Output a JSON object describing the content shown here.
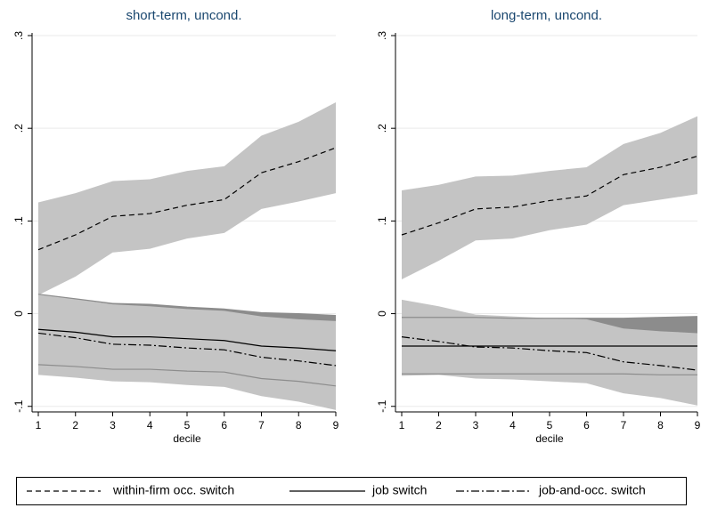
{
  "chart_data": [
    {
      "type": "line",
      "title": "short-term, uncond.",
      "xlabel": "decile",
      "x": [
        1,
        2,
        3,
        4,
        5,
        6,
        7,
        8,
        9
      ],
      "xlim": [
        1,
        9
      ],
      "xticks": [
        1,
        2,
        3,
        4,
        5,
        6,
        7,
        8,
        9
      ],
      "ylim": [
        -0.106,
        0.3
      ],
      "yticks": [
        {
          "value": -0.1,
          "label": "-.1"
        },
        0,
        {
          "value": 0.1,
          "label": ".1"
        },
        {
          "value": 0.2,
          "label": ".2"
        },
        {
          "value": 0.3,
          "label": ".3"
        }
      ],
      "grid": true,
      "series": [
        {
          "name": "within-firm occ. switch",
          "color": "#000000",
          "dash": "6,4",
          "band_color": "#c4c4c4",
          "values": [
            0.069,
            0.085,
            0.105,
            0.108,
            0.117,
            0.123,
            0.152,
            0.164,
            0.179
          ],
          "upper": [
            0.12,
            0.13,
            0.143,
            0.145,
            0.154,
            0.159,
            0.192,
            0.207,
            0.228
          ],
          "lower": [
            0.02,
            0.04,
            0.066,
            0.07,
            0.081,
            0.087,
            0.113,
            0.121,
            0.13
          ]
        },
        {
          "name": "job switch",
          "color": "#000000",
          "dash": "none",
          "band_color": "#8c8c8c",
          "values": [
            -0.017,
            -0.02,
            -0.025,
            -0.025,
            -0.027,
            -0.029,
            -0.035,
            -0.037,
            -0.04
          ],
          "upper": [
            0.021,
            0.016,
            0.011,
            0.01,
            0.007,
            0.005,
            0.001,
            0.0,
            -0.002
          ],
          "lower": [
            -0.055,
            -0.057,
            -0.06,
            -0.06,
            -0.062,
            -0.063,
            -0.07,
            -0.073,
            -0.078
          ]
        },
        {
          "name": "job-and-occ. switch",
          "color": "#000000",
          "dash": "9,3,2,3",
          "band_color": "#c4c4c4",
          "values": [
            -0.021,
            -0.026,
            -0.033,
            -0.034,
            -0.037,
            -0.039,
            -0.047,
            -0.051,
            -0.056
          ],
          "upper": [
            0.021,
            0.016,
            0.01,
            0.008,
            0.005,
            0.003,
            -0.003,
            -0.006,
            -0.008
          ],
          "lower": [
            -0.066,
            -0.069,
            -0.073,
            -0.074,
            -0.077,
            -0.079,
            -0.089,
            -0.095,
            -0.104
          ]
        }
      ]
    },
    {
      "type": "line",
      "title": "long-term, uncond.",
      "xlabel": "decile",
      "x": [
        1,
        2,
        3,
        4,
        5,
        6,
        7,
        8,
        9
      ],
      "xlim": [
        1,
        9
      ],
      "xticks": [
        1,
        2,
        3,
        4,
        5,
        6,
        7,
        8,
        9
      ],
      "ylim": [
        -0.106,
        0.3
      ],
      "yticks": [
        {
          "value": -0.1,
          "label": "-.1"
        },
        0,
        {
          "value": 0.1,
          "label": ".1"
        },
        {
          "value": 0.2,
          "label": ".2"
        },
        {
          "value": 0.3,
          "label": ".3"
        }
      ],
      "grid": true,
      "series": [
        {
          "color": "#000000",
          "dash": "6,4",
          "band_color": "#c4c4c4",
          "values": [
            0.085,
            0.098,
            0.113,
            0.115,
            0.122,
            0.127,
            0.15,
            0.158,
            0.17
          ],
          "upper": [
            0.133,
            0.139,
            0.148,
            0.149,
            0.154,
            0.158,
            0.183,
            0.195,
            0.213
          ],
          "lower": [
            0.037,
            0.057,
            0.079,
            0.081,
            0.09,
            0.096,
            0.117,
            0.123,
            0.129
          ]
        },
        {
          "color": "#000000",
          "dash": "none",
          "band_color": "#8c8c8c",
          "values": [
            -0.035,
            -0.035,
            -0.035,
            -0.035,
            -0.035,
            -0.035,
            -0.035,
            -0.035,
            -0.035
          ],
          "upper": [
            -0.004,
            -0.004,
            -0.004,
            -0.005,
            -0.005,
            -0.005,
            -0.005,
            -0.004,
            -0.003
          ],
          "lower": [
            -0.065,
            -0.065,
            -0.065,
            -0.065,
            -0.065,
            -0.065,
            -0.065,
            -0.066,
            -0.066
          ]
        },
        {
          "color": "#000000",
          "dash": "9,3,2,3",
          "band_color": "#c4c4c4",
          "values": [
            -0.025,
            -0.03,
            -0.036,
            -0.037,
            -0.04,
            -0.042,
            -0.052,
            -0.056,
            -0.061
          ],
          "upper": [
            0.015,
            0.008,
            -0.001,
            -0.003,
            -0.005,
            -0.006,
            -0.016,
            -0.019,
            -0.021
          ],
          "lower": [
            -0.067,
            -0.066,
            -0.07,
            -0.071,
            -0.073,
            -0.075,
            -0.086,
            -0.091,
            -0.099
          ]
        }
      ]
    }
  ]
}
